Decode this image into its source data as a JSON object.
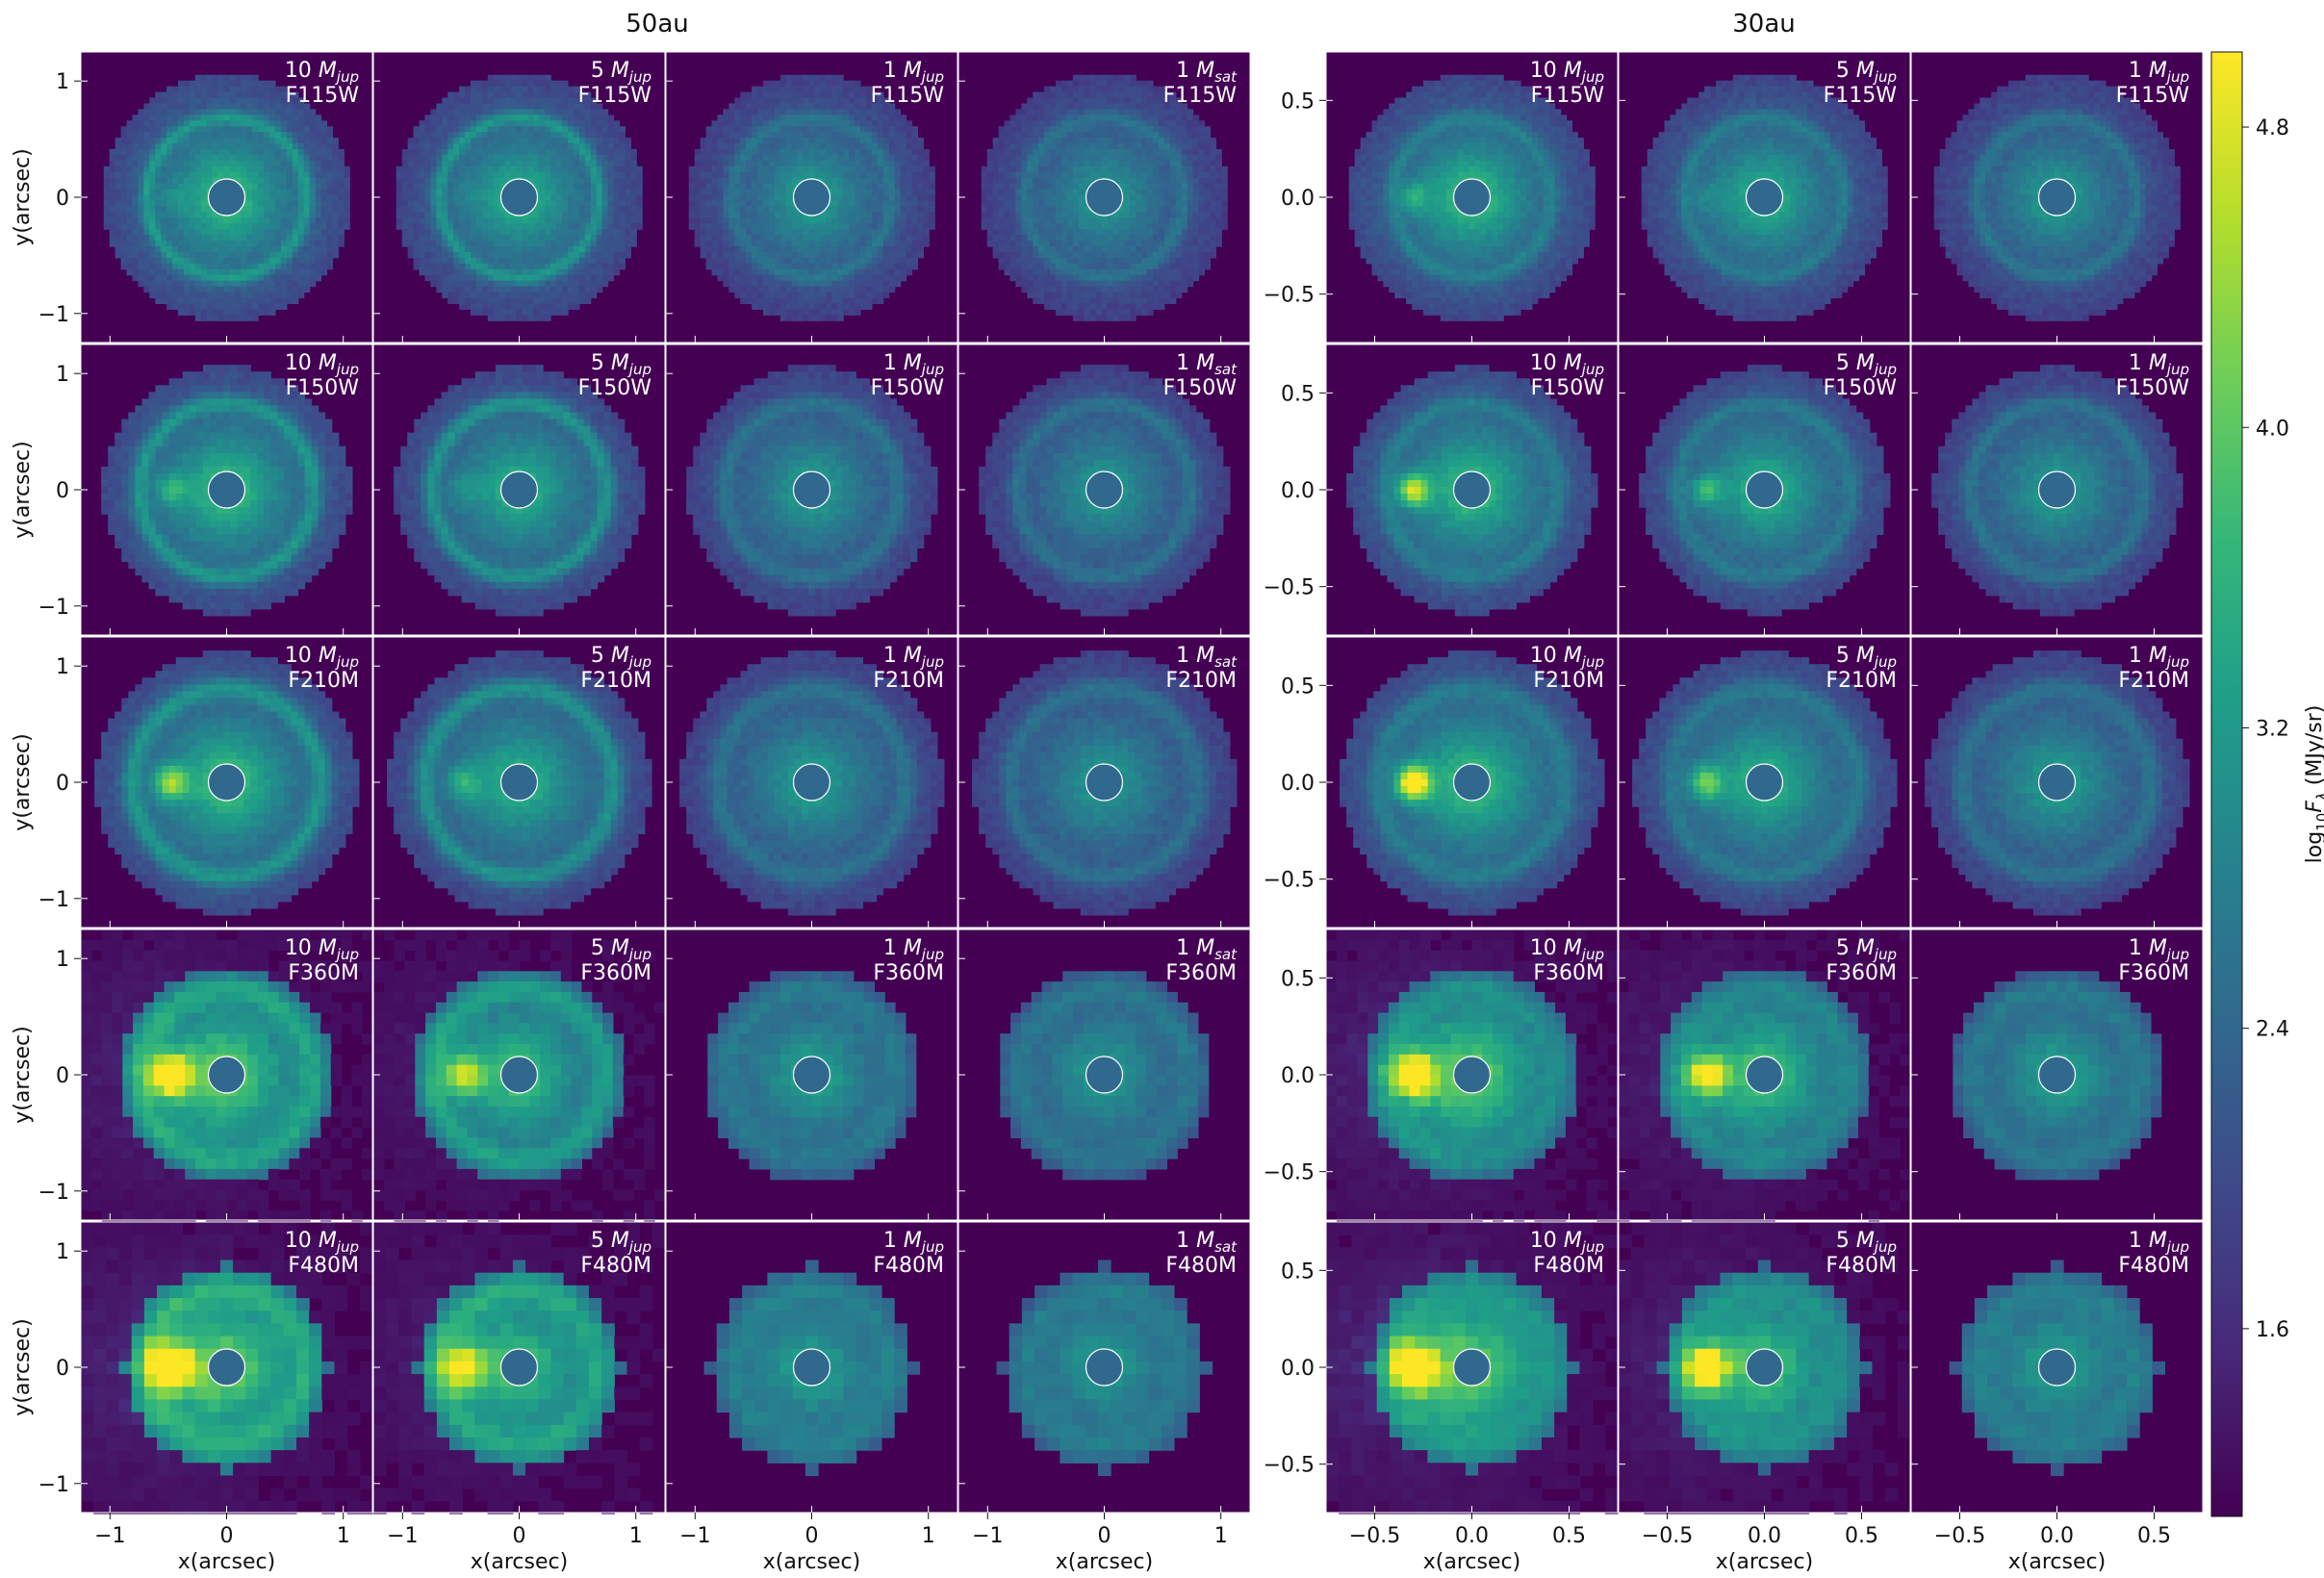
{
  "chart_data": [
    {
      "type": "heatmap",
      "title": "50au",
      "xlabel": "x(arcsec)",
      "ylabel": "y(arcsec)",
      "xlim": [
        -1.25,
        1.25
      ],
      "ylim": [
        -1.25,
        1.25
      ],
      "xticks": [
        -1,
        0,
        1
      ],
      "yticks": [
        -1,
        0,
        1
      ],
      "xtick_labels": [
        "−1",
        "0",
        "1"
      ],
      "ytick_labels": [
        "−1",
        "0",
        "1"
      ],
      "columns": [
        "10 M_jup",
        "5 M_jup",
        "1 M_jup",
        "1 M_sat"
      ],
      "rows": [
        "F115W",
        "F150W",
        "F210M",
        "F360M",
        "F480M"
      ],
      "planet_x_arcsec": -0.48,
      "planet_brightness": [
        [
          0.08,
          0.05,
          0.0,
          0.0
        ],
        [
          0.25,
          0.12,
          0.0,
          0.0
        ],
        [
          0.45,
          0.25,
          0.0,
          0.0
        ],
        [
          0.75,
          0.45,
          0.0,
          0.0
        ],
        [
          0.85,
          0.55,
          0.0,
          0.0
        ]
      ]
    },
    {
      "type": "heatmap",
      "title": "30au",
      "xlabel": "x(arcsec)",
      "ylabel": "",
      "xlim": [
        -0.75,
        0.75
      ],
      "ylim": [
        -0.75,
        0.75
      ],
      "xticks": [
        -0.5,
        0.0,
        0.5
      ],
      "yticks": [
        -0.5,
        0.0,
        0.5
      ],
      "xtick_labels": [
        "−0.5",
        "0.0",
        "0.5"
      ],
      "ytick_labels": [
        "−0.5",
        "0.0",
        "0.5"
      ],
      "columns": [
        "10 M_jup",
        "5 M_jup",
        "1 M_jup"
      ],
      "rows": [
        "F115W",
        "F150W",
        "F210M",
        "F360M",
        "F480M"
      ],
      "planet_x_arcsec": -0.3,
      "planet_brightness": [
        [
          0.25,
          0.1,
          0.0
        ],
        [
          0.55,
          0.3,
          0.0
        ],
        [
          0.75,
          0.4,
          0.0
        ],
        [
          0.85,
          0.6,
          0.0
        ],
        [
          0.95,
          0.7,
          0.0
        ]
      ]
    }
  ],
  "colorbar": {
    "label_prefix": "log",
    "label_sub": "10",
    "label_var": "F",
    "label_var_sub": "λ",
    "label_unit": " (MJy/sr)",
    "vmin": 1.1,
    "vmax": 5.0,
    "ticks": [
      1.6,
      2.4,
      3.2,
      4.0,
      4.8
    ],
    "tick_labels": [
      "1.6",
      "2.4",
      "3.2",
      "4.0",
      "4.8"
    ],
    "colormap": "viridis",
    "colors": [
      "#440154",
      "#482878",
      "#3e4989",
      "#31688e",
      "#26828e",
      "#1f9e89",
      "#35b779",
      "#6ece58",
      "#b5de2b",
      "#fde725"
    ]
  },
  "mass_labels": {
    "10 M_jup": {
      "num": "10",
      "sym": "M",
      "sub": "jup"
    },
    "5 M_jup": {
      "num": "5",
      "sym": "M",
      "sub": "jup"
    },
    "1 M_jup": {
      "num": "1",
      "sym": "M",
      "sub": "jup"
    },
    "1 M_sat": {
      "num": "1",
      "sym": "M",
      "sub": "sat"
    }
  }
}
